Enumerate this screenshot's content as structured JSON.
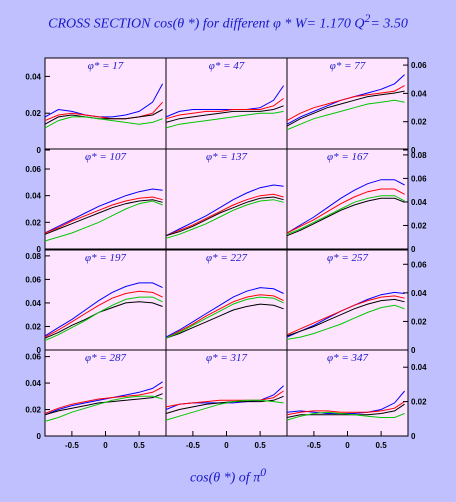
{
  "title": {
    "text_main": "CROSS SECTION  cos(θ *)   for different  φ *   W= 1.170  Q",
    "q2_sup": "2",
    "q2_value": "= 3.50"
  },
  "x_title": {
    "text": "cos(θ *)  of  π",
    "sup": "0"
  },
  "colors": {
    "background": "#c0c0ff",
    "panel": "#ffe4ff",
    "blue": "#0000ff",
    "red": "#ff0000",
    "black": "#000000",
    "green": "#00c800",
    "label": "#1818c8"
  },
  "chart_data": {
    "type": "line",
    "layout": "4x3 grid of panels, shared x axis per column",
    "xlim": [
      -0.9,
      0.9
    ],
    "x_ticks": [
      "-0.5",
      "0",
      "0.5"
    ],
    "x_tick_values": [
      -0.5,
      0,
      0.5
    ],
    "series_colors": [
      "#0000ff",
      "#ff0000",
      "#000000",
      "#00c800"
    ],
    "x": [
      -0.9,
      -0.7,
      -0.5,
      -0.3,
      -0.1,
      0.1,
      0.3,
      0.5,
      0.7,
      0.85
    ],
    "rows": [
      {
        "ylim": [
          0,
          0.05
        ],
        "left_ticks": [
          "0",
          "0.02",
          "0.04"
        ],
        "left_tick_values": [
          0,
          0.02,
          0.04
        ],
        "right_ticks": [
          "0",
          "0.02",
          "0.04",
          "0.06"
        ],
        "right_tick_values": [
          0,
          0.02,
          0.04,
          0.06
        ],
        "right_ylim": [
          0,
          0.065
        ]
      },
      {
        "ylim": [
          0,
          0.075
        ],
        "left_ticks": [
          "0",
          "0.02",
          "0.04",
          "0.06"
        ],
        "left_tick_values": [
          0,
          0.02,
          0.04,
          0.06
        ],
        "right_ticks": [
          "0",
          "0.02",
          "0.04",
          "0.06",
          "0.08"
        ],
        "right_tick_values": [
          0,
          0.02,
          0.04,
          0.06,
          0.08
        ],
        "right_ylim": [
          0,
          0.085
        ]
      },
      {
        "ylim": [
          0,
          0.085
        ],
        "left_ticks": [
          "0",
          "0.02",
          "0.04",
          "0.06",
          "0.08"
        ],
        "left_tick_values": [
          0,
          0.02,
          0.04,
          0.06,
          0.08
        ],
        "right_ticks": [
          "0",
          "0.02",
          "0.04",
          "0.06"
        ],
        "right_tick_values": [
          0,
          0.02,
          0.04,
          0.06
        ],
        "right_ylim": [
          0,
          0.07
        ]
      },
      {
        "ylim": [
          0,
          0.065
        ],
        "left_ticks": [
          "0",
          "0.02",
          "0.04",
          "0.06"
        ],
        "left_tick_values": [
          0,
          0.02,
          0.04,
          0.06
        ],
        "right_ticks": [
          "0",
          "0.02",
          "0.04"
        ],
        "right_tick_values": [
          0,
          0.02,
          0.04
        ],
        "right_ylim": [
          0,
          0.05
        ]
      }
    ],
    "panels": [
      {
        "label": "φ* = 17",
        "series": [
          [
            0.018,
            0.022,
            0.021,
            0.019,
            0.018,
            0.018,
            0.019,
            0.021,
            0.026,
            0.036
          ],
          [
            0.016,
            0.019,
            0.02,
            0.019,
            0.018,
            0.017,
            0.017,
            0.018,
            0.02,
            0.026
          ],
          [
            0.014,
            0.018,
            0.019,
            0.018,
            0.017,
            0.017,
            0.017,
            0.018,
            0.019,
            0.022
          ],
          [
            0.012,
            0.016,
            0.018,
            0.018,
            0.017,
            0.016,
            0.015,
            0.014,
            0.015,
            0.017
          ]
        ]
      },
      {
        "label": "φ* = 47",
        "series": [
          [
            0.018,
            0.021,
            0.022,
            0.022,
            0.022,
            0.022,
            0.022,
            0.023,
            0.027,
            0.035
          ],
          [
            0.017,
            0.019,
            0.02,
            0.021,
            0.021,
            0.022,
            0.022,
            0.022,
            0.024,
            0.028
          ],
          [
            0.015,
            0.017,
            0.018,
            0.019,
            0.02,
            0.021,
            0.021,
            0.021,
            0.022,
            0.024
          ],
          [
            0.012,
            0.014,
            0.015,
            0.016,
            0.017,
            0.018,
            0.019,
            0.02,
            0.02,
            0.021
          ]
        ]
      },
      {
        "label": "φ* = 77",
        "series": [
          [
            0.014,
            0.018,
            0.021,
            0.024,
            0.027,
            0.029,
            0.031,
            0.033,
            0.036,
            0.041
          ],
          [
            0.016,
            0.02,
            0.023,
            0.025,
            0.027,
            0.029,
            0.03,
            0.031,
            0.032,
            0.035
          ],
          [
            0.013,
            0.017,
            0.02,
            0.023,
            0.025,
            0.027,
            0.029,
            0.03,
            0.031,
            0.032
          ],
          [
            0.011,
            0.014,
            0.017,
            0.019,
            0.021,
            0.023,
            0.025,
            0.026,
            0.027,
            0.026
          ]
        ]
      },
      {
        "label": "φ* = 107",
        "series": [
          [
            0.012,
            0.017,
            0.022,
            0.027,
            0.032,
            0.036,
            0.04,
            0.043,
            0.045,
            0.044
          ],
          [
            0.012,
            0.016,
            0.021,
            0.025,
            0.029,
            0.033,
            0.036,
            0.038,
            0.039,
            0.037
          ],
          [
            0.011,
            0.015,
            0.019,
            0.023,
            0.027,
            0.031,
            0.034,
            0.036,
            0.037,
            0.035
          ],
          [
            0.006,
            0.009,
            0.012,
            0.016,
            0.02,
            0.025,
            0.03,
            0.034,
            0.036,
            0.033
          ]
        ]
      },
      {
        "label": "φ* = 137",
        "series": [
          [
            0.01,
            0.015,
            0.02,
            0.025,
            0.031,
            0.037,
            0.042,
            0.046,
            0.048,
            0.047
          ],
          [
            0.01,
            0.014,
            0.018,
            0.023,
            0.028,
            0.033,
            0.037,
            0.04,
            0.041,
            0.039
          ],
          [
            0.01,
            0.013,
            0.017,
            0.022,
            0.027,
            0.031,
            0.035,
            0.038,
            0.039,
            0.037
          ],
          [
            0.008,
            0.011,
            0.015,
            0.019,
            0.024,
            0.029,
            0.033,
            0.036,
            0.037,
            0.035
          ]
        ]
      },
      {
        "label": "φ* = 167",
        "series": [
          [
            0.012,
            0.018,
            0.024,
            0.031,
            0.038,
            0.044,
            0.049,
            0.052,
            0.052,
            0.048
          ],
          [
            0.012,
            0.017,
            0.022,
            0.028,
            0.034,
            0.039,
            0.043,
            0.045,
            0.045,
            0.041
          ],
          [
            0.01,
            0.014,
            0.019,
            0.024,
            0.029,
            0.033,
            0.036,
            0.038,
            0.038,
            0.035
          ],
          [
            0.011,
            0.015,
            0.02,
            0.025,
            0.03,
            0.035,
            0.038,
            0.04,
            0.04,
            0.036
          ]
        ]
      },
      {
        "label": "φ* = 197",
        "series": [
          [
            0.012,
            0.019,
            0.026,
            0.034,
            0.042,
            0.049,
            0.054,
            0.057,
            0.057,
            0.053
          ],
          [
            0.011,
            0.017,
            0.024,
            0.031,
            0.038,
            0.044,
            0.048,
            0.05,
            0.049,
            0.045
          ],
          [
            0.01,
            0.015,
            0.021,
            0.026,
            0.032,
            0.036,
            0.04,
            0.041,
            0.04,
            0.037
          ],
          [
            0.008,
            0.013,
            0.019,
            0.025,
            0.032,
            0.038,
            0.043,
            0.045,
            0.045,
            0.041
          ]
        ]
      },
      {
        "label": "φ* = 227",
        "series": [
          [
            0.011,
            0.017,
            0.024,
            0.031,
            0.038,
            0.045,
            0.05,
            0.053,
            0.052,
            0.048
          ],
          [
            0.01,
            0.016,
            0.022,
            0.029,
            0.035,
            0.041,
            0.045,
            0.047,
            0.046,
            0.042
          ],
          [
            0.01,
            0.014,
            0.019,
            0.024,
            0.029,
            0.034,
            0.037,
            0.039,
            0.038,
            0.035
          ],
          [
            0.01,
            0.015,
            0.021,
            0.027,
            0.033,
            0.039,
            0.043,
            0.045,
            0.044,
            0.04
          ]
        ]
      },
      {
        "label": "φ* = 257",
        "series": [
          [
            0.011,
            0.016,
            0.021,
            0.027,
            0.033,
            0.038,
            0.043,
            0.047,
            0.049,
            0.048
          ],
          [
            0.013,
            0.018,
            0.023,
            0.028,
            0.033,
            0.038,
            0.042,
            0.045,
            0.046,
            0.044
          ],
          [
            0.012,
            0.016,
            0.02,
            0.025,
            0.03,
            0.035,
            0.039,
            0.042,
            0.043,
            0.041
          ],
          [
            0.009,
            0.011,
            0.014,
            0.018,
            0.022,
            0.027,
            0.032,
            0.036,
            0.038,
            0.035
          ]
        ]
      },
      {
        "label": "φ* = 287",
        "series": [
          [
            0.016,
            0.02,
            0.023,
            0.025,
            0.027,
            0.029,
            0.031,
            0.033,
            0.036,
            0.041
          ],
          [
            0.017,
            0.021,
            0.024,
            0.026,
            0.028,
            0.029,
            0.03,
            0.031,
            0.033,
            0.037
          ],
          [
            0.016,
            0.019,
            0.021,
            0.023,
            0.025,
            0.026,
            0.027,
            0.028,
            0.029,
            0.032
          ],
          [
            0.011,
            0.014,
            0.018,
            0.021,
            0.024,
            0.027,
            0.029,
            0.03,
            0.03,
            0.028
          ]
        ]
      },
      {
        "label": "φ* = 317",
        "series": [
          [
            0.02,
            0.024,
            0.025,
            0.025,
            0.025,
            0.025,
            0.026,
            0.027,
            0.031,
            0.038
          ],
          [
            0.022,
            0.024,
            0.025,
            0.026,
            0.027,
            0.027,
            0.027,
            0.027,
            0.029,
            0.034
          ],
          [
            0.017,
            0.02,
            0.022,
            0.024,
            0.025,
            0.026,
            0.026,
            0.026,
            0.027,
            0.03
          ],
          [
            0.012,
            0.015,
            0.018,
            0.021,
            0.024,
            0.026,
            0.027,
            0.027,
            0.026,
            0.025
          ]
        ]
      },
      {
        "label": "φ* = 347",
        "series": [
          [
            0.018,
            0.019,
            0.018,
            0.017,
            0.017,
            0.017,
            0.018,
            0.02,
            0.025,
            0.034
          ],
          [
            0.016,
            0.018,
            0.019,
            0.019,
            0.018,
            0.018,
            0.018,
            0.019,
            0.021,
            0.026
          ],
          [
            0.014,
            0.016,
            0.016,
            0.016,
            0.016,
            0.016,
            0.016,
            0.017,
            0.019,
            0.024
          ],
          [
            0.012,
            0.015,
            0.017,
            0.018,
            0.017,
            0.016,
            0.015,
            0.014,
            0.014,
            0.017
          ]
        ]
      }
    ]
  }
}
